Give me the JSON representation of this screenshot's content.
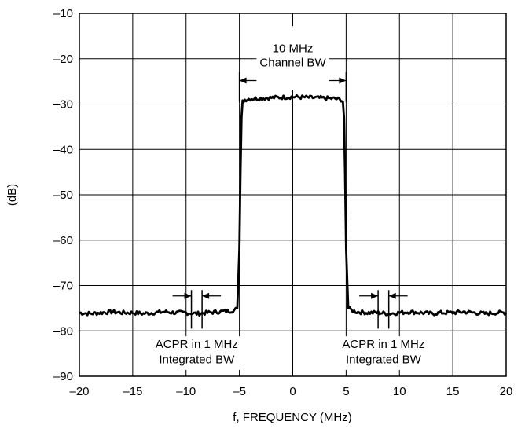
{
  "chart_data": {
    "type": "line",
    "title": "",
    "xlabel": "f, FREQUENCY (MHz)",
    "ylabel": "(dB)",
    "xlim": [
      -20,
      20
    ],
    "ylim": [
      -90,
      -10
    ],
    "xticks": [
      -20,
      -15,
      -10,
      -5,
      0,
      5,
      10,
      15,
      20
    ],
    "yticks": [
      -10,
      -20,
      -30,
      -40,
      -50,
      -60,
      -70,
      -80,
      -90
    ],
    "xtick_labels": [
      "–20",
      "–15",
      "–10",
      "–5",
      "0",
      "5",
      "10",
      "15",
      "20"
    ],
    "ytick_labels": [
      "–10",
      "–20",
      "–30",
      "–40",
      "–50",
      "–60",
      "–70",
      "–80",
      "–90"
    ],
    "grid": true,
    "series": [
      {
        "x": [
          -20,
          -19,
          -18,
          -17,
          -16,
          -15,
          -14,
          -13,
          -12,
          -11,
          -10,
          -9,
          -8,
          -7,
          -6,
          -5.5,
          -5.2,
          -5.0,
          -4.9,
          -4.8,
          -4.7,
          -4.5,
          -4,
          -3,
          -2,
          -1,
          0,
          1,
          2,
          3,
          4,
          4.5,
          4.7,
          4.8,
          4.9,
          5.0,
          5.2,
          5.5,
          6,
          7,
          8,
          9,
          10,
          11,
          12,
          13,
          14,
          15,
          16,
          17,
          18,
          19,
          20
        ],
        "y": [
          -76,
          -76.2,
          -76,
          -75.8,
          -76,
          -76,
          -76.2,
          -76,
          -75.8,
          -76,
          -76,
          -76.2,
          -76,
          -75.8,
          -75.6,
          -75.5,
          -75,
          -62,
          -45,
          -33,
          -29.5,
          -29,
          -28.8,
          -28.7,
          -28.6,
          -28.5,
          -28.4,
          -28.5,
          -28.6,
          -28.7,
          -28.8,
          -29,
          -29.5,
          -33,
          -45,
          -62,
          -75,
          -75.5,
          -75.8,
          -76,
          -76,
          -76.2,
          -76,
          -75.8,
          -76,
          -76.2,
          -76,
          -76,
          -75.8,
          -76,
          -76.2,
          -76,
          -76
        ]
      }
    ],
    "annotations": {
      "channel": {
        "line1": "10 MHz",
        "line2": "Channel BW",
        "x1": -5,
        "x2": 5
      },
      "acpr_left": {
        "line1": "ACPR in 1 MHz",
        "line2": "Integrated BW",
        "x1": -9.5,
        "x2": -8.5
      },
      "acpr_right": {
        "line1": "ACPR in 1 MHz",
        "line2": "Integrated BW",
        "x1": 8,
        "x2": 9
      }
    }
  }
}
